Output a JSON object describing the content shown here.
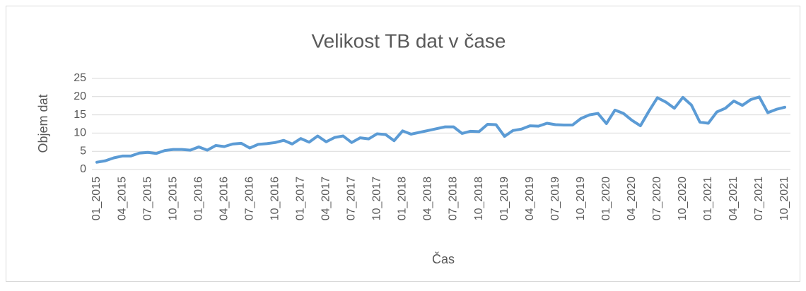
{
  "chart_data": {
    "type": "line",
    "title": "Velikost TB dat v čase",
    "x_label": "Čas",
    "y_label": "Objem dat",
    "categories": [
      "01_2015",
      null,
      null,
      "04_2015",
      null,
      null,
      "07_2015",
      null,
      null,
      "10_2015",
      null,
      null,
      "01_2016",
      null,
      null,
      "04_2016",
      null,
      null,
      "07_2016",
      null,
      null,
      "10_2016",
      null,
      null,
      "01_2017",
      null,
      null,
      "04_2017",
      null,
      null,
      "07_2017",
      null,
      null,
      "10_2017",
      null,
      null,
      "01_2018",
      null,
      null,
      "04_2018",
      null,
      null,
      "07_2018",
      null,
      null,
      "10_2018",
      null,
      null,
      "01_2019",
      null,
      null,
      "04_2019",
      null,
      null,
      "07_2019",
      null,
      null,
      "10_2019",
      null,
      null,
      "01_2020",
      null,
      null,
      "04_2020",
      null,
      null,
      "07_2020",
      null,
      null,
      "10_2020",
      null,
      null,
      "01_2021",
      null,
      null,
      "04_2021",
      null,
      null,
      "07_2021",
      null,
      null,
      "10_2021"
    ],
    "series": [
      {
        "name": "Objem dat",
        "color": "#5b9bd5",
        "values": [
          2.0,
          2.4,
          3.2,
          3.7,
          3.7,
          4.5,
          4.7,
          4.4,
          5.2,
          5.5,
          5.5,
          5.3,
          6.2,
          5.3,
          6.6,
          6.3,
          7.0,
          7.2,
          5.9,
          6.9,
          7.1,
          7.4,
          8.0,
          7.0,
          8.5,
          7.5,
          9.2,
          7.6,
          8.8,
          9.2,
          7.4,
          8.7,
          8.4,
          9.8,
          9.6,
          7.9,
          10.6,
          9.7,
          10.2,
          10.7,
          11.2,
          11.7,
          11.7,
          9.9,
          10.5,
          10.4,
          12.4,
          12.3,
          9.1,
          10.7,
          11.1,
          12.0,
          11.9,
          12.7,
          12.3,
          12.2,
          12.2,
          14.0,
          15.0,
          15.4,
          12.6,
          16.3,
          15.4,
          13.5,
          12.0,
          16.0,
          19.7,
          18.5,
          16.8,
          19.8,
          17.7,
          13.0,
          12.7,
          15.8,
          16.8,
          18.8,
          17.6,
          19.2,
          19.9,
          15.6,
          16.5,
          17.1
        ]
      }
    ],
    "ylim": [
      0,
      25
    ],
    "yticks": [
      0,
      5,
      10,
      15,
      20,
      25
    ],
    "grid": true
  }
}
